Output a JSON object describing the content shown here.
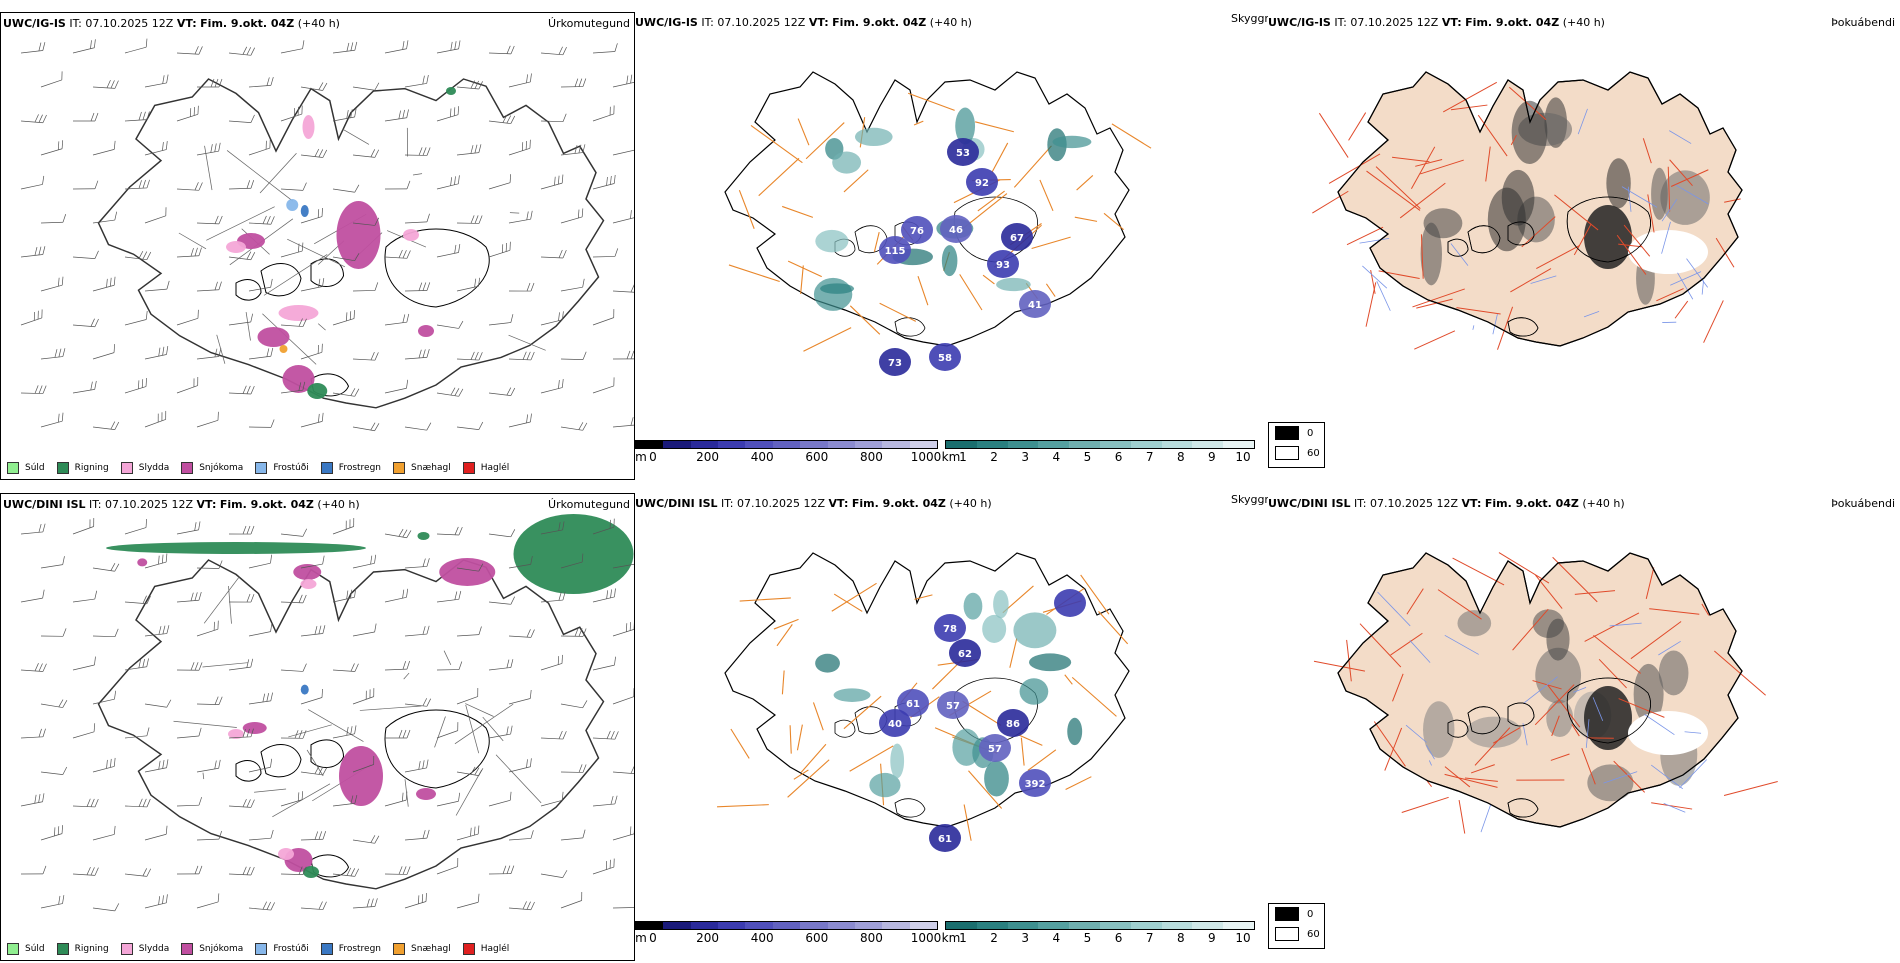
{
  "rows": [
    {
      "model": "UWC/IG-IS",
      "it_label": "IT:",
      "it_value": "07.10.2025 12Z",
      "vt_label": "VT:",
      "vt_value": "Fim. 9.okt. 04Z",
      "lead": "(+40 h)",
      "precip_title": "Úrkomutegund",
      "vis_title": "Skyggni",
      "fog_title": "Þokuábendi",
      "snow_numbers": [
        "53",
        "92",
        "76",
        "46",
        "67",
        "93",
        "115",
        "41",
        "73",
        "58"
      ]
    },
    {
      "model": "UWC/DINI ISL",
      "it_label": "IT:",
      "it_value": "07.10.2025 12Z",
      "vt_label": "VT:",
      "vt_value": "Fim. 9.okt. 04Z",
      "lead": "(+40 h)",
      "precip_title": "Úrkomutegund",
      "vis_title": "Skyggni",
      "fog_title": "Þokuábendi",
      "snow_numbers": [
        "62",
        "78",
        "61",
        "57",
        "86",
        "40",
        "392",
        "57",
        "61"
      ]
    }
  ],
  "precip_legend": [
    {
      "label": "Súld",
      "color": "#90ee90"
    },
    {
      "label": "Rigning",
      "color": "#2e8b57"
    },
    {
      "label": "Slydda",
      "color": "#f4a6d7"
    },
    {
      "label": "Snjókoma",
      "color": "#c04fa0"
    },
    {
      "label": "Frostúði",
      "color": "#87b7ea"
    },
    {
      "label": "Frostregn",
      "color": "#3a78c3"
    },
    {
      "label": "Snæhagl",
      "color": "#f0a030"
    },
    {
      "label": "Haglél",
      "color": "#e02020"
    }
  ],
  "snow_scale": {
    "unit": "m",
    "labels": [
      "0",
      "200",
      "400",
      "600",
      "800",
      "1000"
    ],
    "colors": [
      "#000000",
      "#1a1a7a",
      "#2a2a9a",
      "#3c3cb0",
      "#5050bb",
      "#6262c0",
      "#7878c8",
      "#8c8cd0",
      "#a0a0d8",
      "#b8b8e0",
      "#d0d0ea"
    ]
  },
  "vis_scale": {
    "unit": "km",
    "labels": [
      "1",
      "2",
      "3",
      "4",
      "5",
      "6",
      "7",
      "8",
      "9",
      "10"
    ],
    "colors": [
      "#1a6e6e",
      "#2a8080",
      "#3e9090",
      "#55a0a0",
      "#70b0b0",
      "#88c0c0",
      "#a0d0d0",
      "#b8dcdc",
      "#d0e8e8",
      "#e8f4f4"
    ]
  },
  "fog_legend": {
    "labels": [
      "0",
      "60"
    ],
    "colors": [
      "#000000",
      "#ffffff"
    ]
  },
  "colors": {
    "land_fill": "#f3dcc8",
    "road_orange": "#e8862a",
    "road_red": "#e04a2a",
    "river_blue": "#7a95e8",
    "coast": "#000000"
  }
}
